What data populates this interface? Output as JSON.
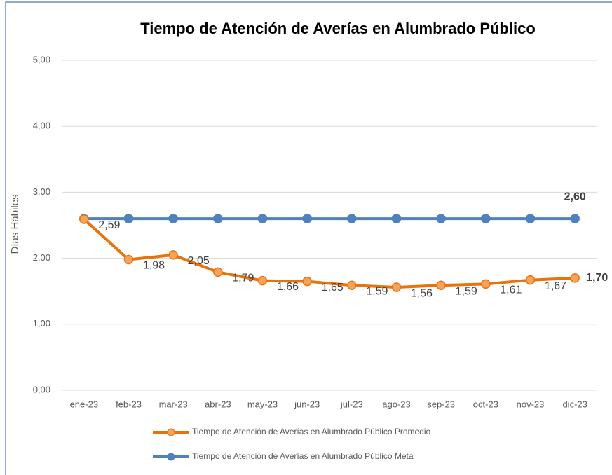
{
  "chart_data": {
    "type": "line",
    "title": "Tiempo de Atención de Averías en Alumbrado Público",
    "y_label": "Días Hábiles",
    "categories": [
      "ene-23",
      "feb-23",
      "mar-23",
      "abr-23",
      "may-23",
      "jun-23",
      "jul-23",
      "ago-23",
      "sep-23",
      "oct-23",
      "nov-23",
      "dic-23"
    ],
    "series": [
      {
        "name": "Tiempo de Atención de Averías en Alumbrado Público Promedio",
        "color": "#e8730c",
        "marker_fill": "#f5a35a",
        "values": [
          2.59,
          1.98,
          2.05,
          1.79,
          1.66,
          1.65,
          1.59,
          1.56,
          1.59,
          1.61,
          1.67,
          1.7
        ],
        "value_labels": [
          "2,59",
          "1,98",
          "2,05",
          "1,79",
          "1,66",
          "1,65",
          "1,59",
          "1,56",
          "1,59",
          "1,61",
          "1,67",
          "1,70"
        ]
      },
      {
        "name": "Tiempo de Atención de Averías en Alumbrado Público Meta",
        "color": "#4f81bd",
        "marker_fill": "#4f81bd",
        "values": [
          2.6,
          2.6,
          2.6,
          2.6,
          2.6,
          2.6,
          2.6,
          2.6,
          2.6,
          2.6,
          2.6,
          2.6
        ],
        "value_labels": [
          null,
          null,
          null,
          null,
          null,
          null,
          null,
          null,
          null,
          null,
          null,
          "2,60"
        ]
      }
    ],
    "ylim": [
      0,
      5
    ],
    "yticks": [
      {
        "value": 0,
        "label": "0,00"
      },
      {
        "value": 1,
        "label": "1,00"
      },
      {
        "value": 2,
        "label": "2,00"
      },
      {
        "value": 3,
        "label": "3,00"
      },
      {
        "value": 4,
        "label": "4,00"
      },
      {
        "value": 5,
        "label": "5,00"
      }
    ],
    "grid": true
  }
}
